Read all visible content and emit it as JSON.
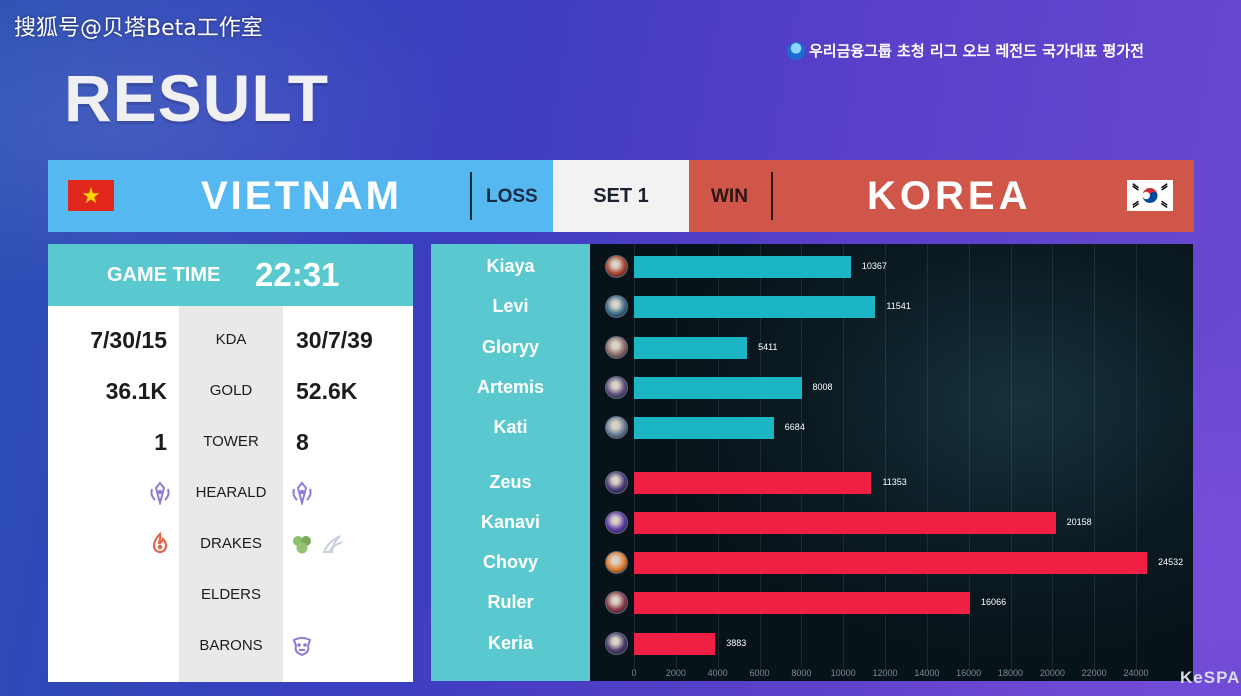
{
  "watermark": "搜狐号@贝塔Beta工作室",
  "event_title": "우리금융그룹 초청 리그 오브 레전드 국가대표 평가전",
  "title": "RESULT",
  "match": {
    "team_left": "VIETNAM",
    "result_left": "LOSS",
    "set_label": "SET 1",
    "result_right": "WIN",
    "team_right": "KOREA"
  },
  "stats": {
    "game_time_label": "GAME TIME",
    "game_time": "22:31",
    "rows": [
      {
        "label": "KDA",
        "left": "7/30/15",
        "right": "30/7/39"
      },
      {
        "label": "GOLD",
        "left": "36.1K",
        "right": "52.6K"
      },
      {
        "label": "TOWER",
        "left": "1",
        "right": "8"
      },
      {
        "label": "HEARALD",
        "left": "",
        "right": ""
      },
      {
        "label": "DRAKES",
        "left": "",
        "right": ""
      },
      {
        "label": "ELDERS",
        "left": "",
        "right": ""
      },
      {
        "label": "BARONS",
        "left": "",
        "right": ""
      }
    ],
    "icons": {
      "herald_left": "herald-icon",
      "herald_right": "herald-icon",
      "drake_left": "infernal-drake-icon",
      "drake_right": [
        "mountain-drake-icon",
        "cloud-drake-icon"
      ],
      "baron_right": "baron-icon"
    }
  },
  "chart_data": {
    "type": "bar",
    "orientation": "horizontal",
    "categories": [
      "Kiaya",
      "Levi",
      "Gloryy",
      "Artemis",
      "Kati",
      "Zeus",
      "Kanavi",
      "Chovy",
      "Ruler",
      "Keria"
    ],
    "series": [
      {
        "values": [
          10367,
          11541,
          5411,
          8008,
          6684,
          null,
          null,
          null,
          null,
          null
        ],
        "color": "#1bb5c4"
      },
      {
        "values": [
          null,
          null,
          null,
          null,
          null,
          11353,
          20158,
          24532,
          16066,
          3883
        ],
        "color": "#f01f44"
      }
    ],
    "ticks": [
      0,
      2000,
      4000,
      6000,
      8000,
      10000,
      12000,
      14000,
      16000,
      18000,
      20000,
      22000,
      24000
    ],
    "xlim": [
      0,
      26000
    ],
    "grid": true
  },
  "colors": {
    "vietnam": "#56b8f0",
    "korea": "#d0564a",
    "teal": "#5ac8cf"
  },
  "footer_logo": "KeSPA"
}
